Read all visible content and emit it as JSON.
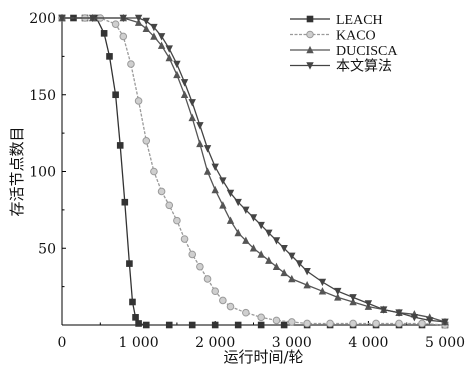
{
  "chart_data": {
    "type": "line",
    "title": "",
    "xlabel": "运行时间/轮",
    "ylabel": "存活节点数目",
    "xlim": [
      0,
      5000
    ],
    "ylim": [
      0,
      200
    ],
    "x_ticks": [
      0,
      1000,
      2000,
      3000,
      4000,
      5000
    ],
    "x_tick_labels": [
      "0",
      "1 000",
      "2 000",
      "3 000",
      "4 000",
      "5 000"
    ],
    "y_ticks": [
      50,
      100,
      150,
      200
    ],
    "y_tick_labels": [
      "50",
      "100",
      "150",
      "200"
    ],
    "grid": false,
    "legend_position": "top-right",
    "series": [
      {
        "name": "LEACH",
        "color": "#333333",
        "marker": "square",
        "points": [
          [
            0,
            200
          ],
          [
            150,
            200
          ],
          [
            300,
            200
          ],
          [
            450,
            200
          ],
          [
            550,
            190
          ],
          [
            620,
            175
          ],
          [
            700,
            150
          ],
          [
            760,
            117
          ],
          [
            820,
            80
          ],
          [
            880,
            40
          ],
          [
            920,
            15
          ],
          [
            960,
            5
          ],
          [
            1000,
            1
          ],
          [
            1100,
            0
          ],
          [
            1400,
            0
          ],
          [
            1700,
            0
          ],
          [
            2000,
            0
          ],
          [
            2300,
            0
          ],
          [
            2600,
            0
          ],
          [
            2900,
            0
          ],
          [
            3200,
            0
          ],
          [
            3500,
            0
          ],
          [
            3800,
            0
          ],
          [
            4100,
            0
          ],
          [
            4400,
            0
          ],
          [
            4700,
            0
          ],
          [
            5000,
            0
          ]
        ]
      },
      {
        "name": "KACO",
        "color": "#9a9a9a",
        "marker": "circle",
        "points": [
          [
            0,
            200
          ],
          [
            300,
            200
          ],
          [
            500,
            200
          ],
          [
            700,
            196
          ],
          [
            800,
            188
          ],
          [
            900,
            170
          ],
          [
            1000,
            146
          ],
          [
            1100,
            120
          ],
          [
            1200,
            100
          ],
          [
            1300,
            87
          ],
          [
            1400,
            78
          ],
          [
            1500,
            68
          ],
          [
            1600,
            56
          ],
          [
            1700,
            46
          ],
          [
            1800,
            38
          ],
          [
            1900,
            30
          ],
          [
            2000,
            22
          ],
          [
            2100,
            16
          ],
          [
            2200,
            12
          ],
          [
            2400,
            8
          ],
          [
            2600,
            5
          ],
          [
            2800,
            3
          ],
          [
            3000,
            2
          ],
          [
            3200,
            1
          ],
          [
            3500,
            1
          ],
          [
            3800,
            1
          ],
          [
            4100,
            1
          ],
          [
            4400,
            1
          ],
          [
            4700,
            1
          ],
          [
            5000,
            0
          ]
        ]
      },
      {
        "name": "DUCISCA",
        "color": "#555555",
        "marker": "triangle-up",
        "points": [
          [
            0,
            200
          ],
          [
            400,
            200
          ],
          [
            800,
            200
          ],
          [
            1000,
            197
          ],
          [
            1100,
            193
          ],
          [
            1200,
            188
          ],
          [
            1300,
            182
          ],
          [
            1400,
            174
          ],
          [
            1500,
            163
          ],
          [
            1600,
            150
          ],
          [
            1700,
            135
          ],
          [
            1800,
            118
          ],
          [
            1900,
            100
          ],
          [
            2000,
            88
          ],
          [
            2100,
            78
          ],
          [
            2200,
            68
          ],
          [
            2300,
            60
          ],
          [
            2400,
            55
          ],
          [
            2500,
            50
          ],
          [
            2600,
            46
          ],
          [
            2700,
            42
          ],
          [
            2800,
            38
          ],
          [
            2900,
            34
          ],
          [
            3000,
            30
          ],
          [
            3200,
            26
          ],
          [
            3400,
            22
          ],
          [
            3600,
            18
          ],
          [
            3800,
            15
          ],
          [
            4000,
            12
          ],
          [
            4200,
            10
          ],
          [
            4400,
            8
          ],
          [
            4600,
            7
          ],
          [
            4800,
            5
          ],
          [
            5000,
            2
          ]
        ]
      },
      {
        "name": "本文算法",
        "color": "#444444",
        "marker": "triangle-down",
        "points": [
          [
            0,
            200
          ],
          [
            400,
            200
          ],
          [
            800,
            200
          ],
          [
            1000,
            200
          ],
          [
            1100,
            198
          ],
          [
            1200,
            194
          ],
          [
            1300,
            188
          ],
          [
            1400,
            180
          ],
          [
            1500,
            170
          ],
          [
            1600,
            158
          ],
          [
            1700,
            145
          ],
          [
            1800,
            130
          ],
          [
            1900,
            115
          ],
          [
            2000,
            103
          ],
          [
            2100,
            94
          ],
          [
            2200,
            86
          ],
          [
            2300,
            80
          ],
          [
            2400,
            75
          ],
          [
            2500,
            70
          ],
          [
            2600,
            65
          ],
          [
            2700,
            60
          ],
          [
            2800,
            55
          ],
          [
            2900,
            50
          ],
          [
            3000,
            45
          ],
          [
            3100,
            40
          ],
          [
            3200,
            35
          ],
          [
            3400,
            28
          ],
          [
            3600,
            22
          ],
          [
            3800,
            18
          ],
          [
            4000,
            14
          ],
          [
            4200,
            10
          ],
          [
            4400,
            8
          ],
          [
            4600,
            5
          ],
          [
            4800,
            3
          ],
          [
            5000,
            2
          ]
        ]
      }
    ]
  }
}
